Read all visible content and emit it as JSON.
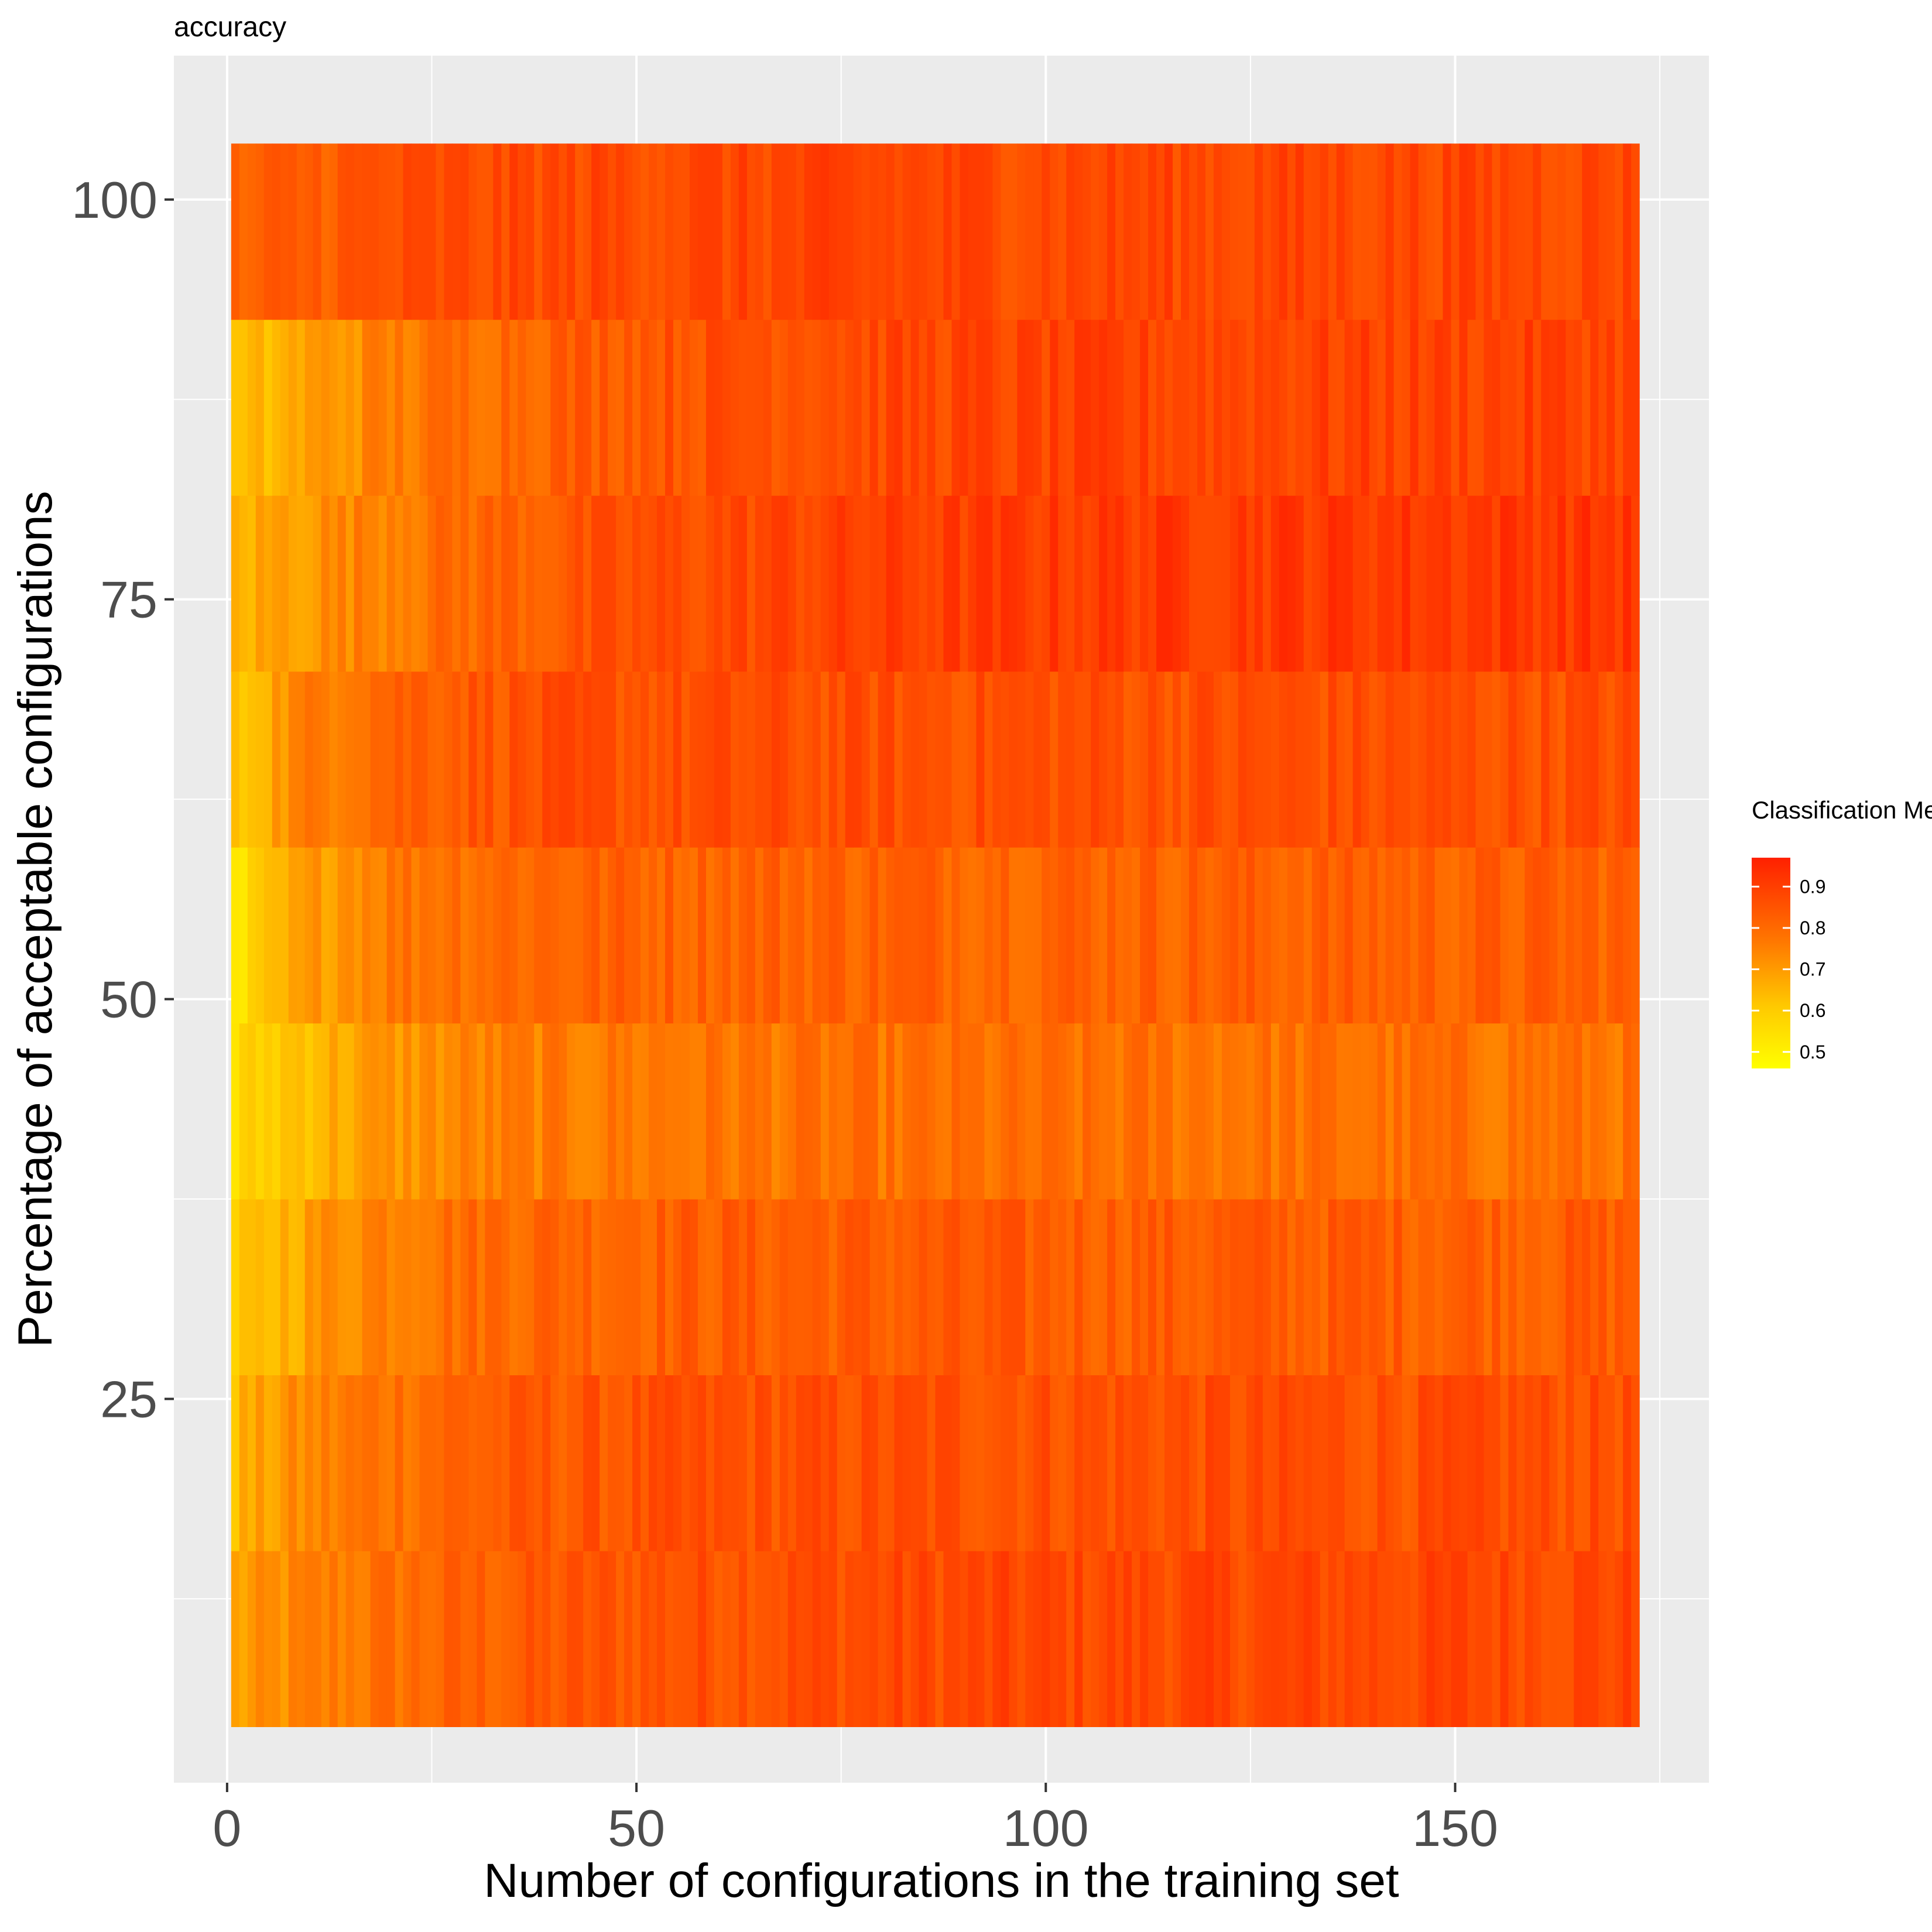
{
  "chart_data": {
    "type": "heatmap",
    "title": "accuracy",
    "xlabel": "Number of configurations in the training set",
    "ylabel": "Percentage of acceptable configurations",
    "x_range": [
      1,
      172
    ],
    "xlim": [
      -6.5,
      181
    ],
    "ylim": [
      1,
      109
    ],
    "x_ticks": [
      0,
      50,
      100,
      150
    ],
    "x_tick_labels": [
      "0",
      "50",
      "100",
      "150"
    ],
    "y_ticks": [
      25,
      50,
      75,
      100
    ],
    "y_tick_labels": [
      "25",
      "50",
      "75",
      "100"
    ],
    "grid": true,
    "colorbar": {
      "title": "Classification Metric",
      "min": 0.46,
      "max": 0.97,
      "low_color": "#ffff00",
      "high_color": "#ff2000",
      "ticks": [
        0.5,
        0.6,
        0.7,
        0.8,
        0.9
      ],
      "tick_labels": [
        "0.5",
        "0.6",
        "0.7",
        "0.8",
        "0.9"
      ],
      "legend_position": "right"
    },
    "rows": [
      {
        "y": 10,
        "start": 0.68,
        "end": 0.88,
        "ramp": 0.15
      },
      {
        "y": 21,
        "start": 0.64,
        "end": 0.86,
        "ramp": 0.1
      },
      {
        "y": 32,
        "start": 0.57,
        "end": 0.83,
        "ramp": 0.08
      },
      {
        "y": 43,
        "start": 0.55,
        "end": 0.78,
        "ramp": 0.1
      },
      {
        "y": 54,
        "start": 0.5,
        "end": 0.82,
        "ramp": 0.06
      },
      {
        "y": 65,
        "start": 0.6,
        "end": 0.86,
        "ramp": 0.06
      },
      {
        "y": 76,
        "start": 0.65,
        "end": 0.92,
        "ramp": 0.2
      },
      {
        "y": 87,
        "start": 0.6,
        "end": 0.89,
        "ramp": 0.15
      },
      {
        "y": 98,
        "start": 0.8,
        "end": 0.88,
        "ramp": 0.1
      }
    ]
  }
}
